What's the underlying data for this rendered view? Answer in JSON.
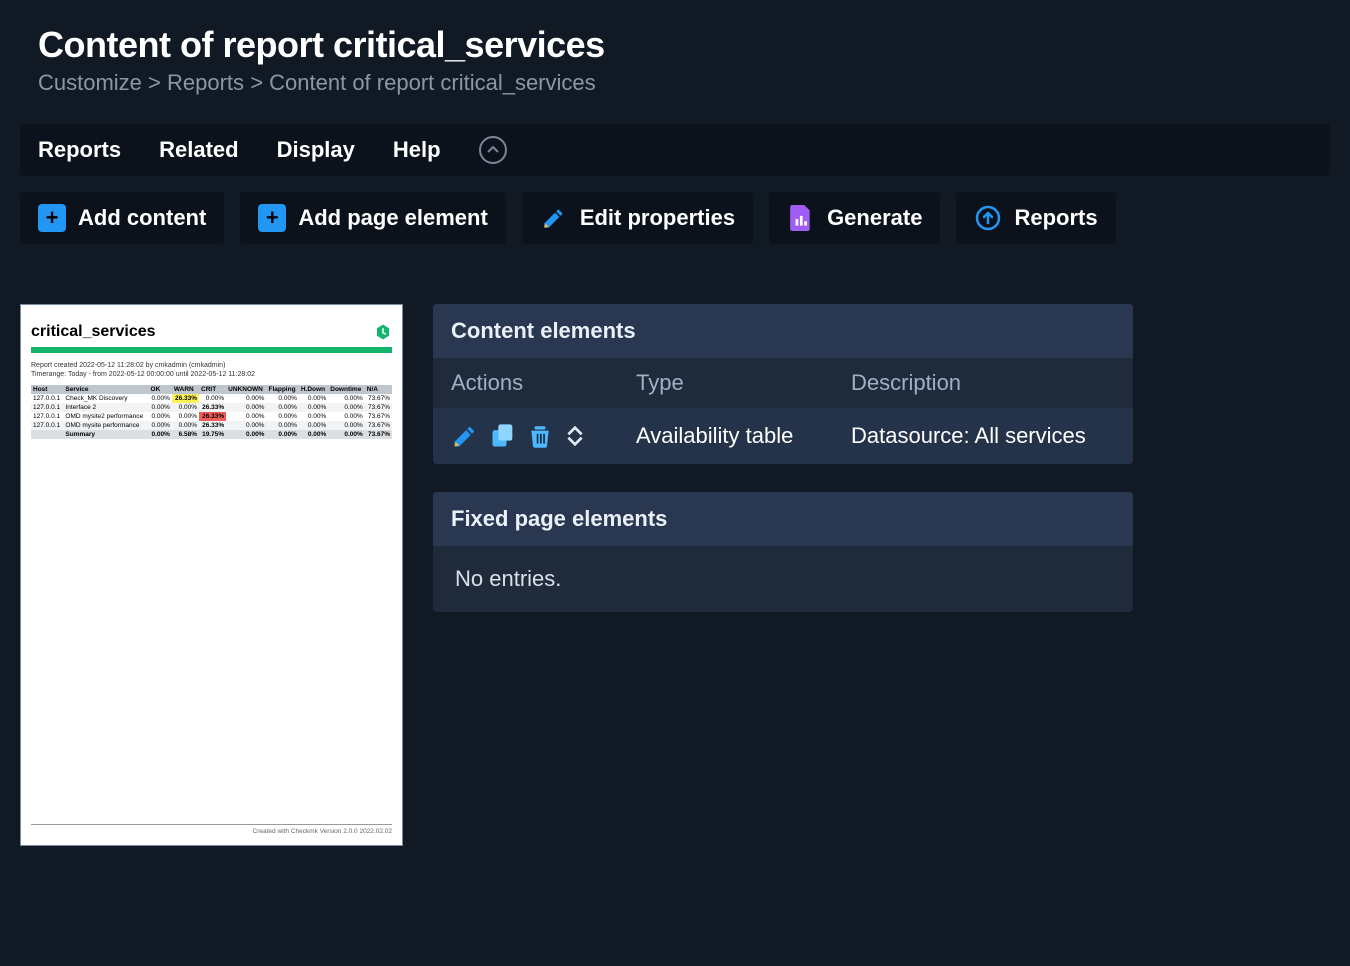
{
  "page": {
    "title": "Content of report critical_services",
    "breadcrumb": [
      "Customize",
      "Reports",
      "Content of report critical_services"
    ]
  },
  "menubar": {
    "items": [
      "Reports",
      "Related",
      "Display",
      "Help"
    ]
  },
  "toolbar": {
    "add_content": "Add content",
    "add_page_element": "Add page element",
    "edit_properties": "Edit properties",
    "generate": "Generate",
    "reports": "Reports"
  },
  "preview": {
    "title": "critical_services",
    "meta_line1": "Report created 2022-05-12 11:28:02 by cmkadmin (cmkadmin)",
    "meta_line2": "Timerange: Today - from 2022-05-12 00:00:00 until 2022-05-12 11:28:02",
    "columns": [
      "Host",
      "Service",
      "OK",
      "WARN",
      "CRIT",
      "UNKNOWN",
      "Flapping",
      "H.Down",
      "Downtime",
      "N/A"
    ],
    "rows": [
      {
        "host": "127.0.0.1",
        "service": "Check_MK Discovery",
        "ok": "0.00%",
        "warn": "26.33%",
        "crit": "0.00%",
        "unk": "0.00%",
        "flap": "0.00%",
        "hdown": "0.00%",
        "down": "0.00%",
        "na": "73.67%",
        "hl_warn": true
      },
      {
        "host": "127.0.0.1",
        "service": "Interface 2",
        "ok": "0.00%",
        "warn": "0.00%",
        "crit": "26.33%",
        "unk": "0.00%",
        "flap": "0.00%",
        "hdown": "0.00%",
        "down": "0.00%",
        "na": "73.67%",
        "hl_crit": true
      },
      {
        "host": "127.0.0.1",
        "service": "OMD mysite2 performance",
        "ok": "0.00%",
        "warn": "0.00%",
        "crit": "26.33%",
        "unk": "0.00%",
        "flap": "0.00%",
        "hdown": "0.00%",
        "down": "0.00%",
        "na": "73.67%",
        "hl_crit": true
      },
      {
        "host": "127.0.0.1",
        "service": "OMD mysite performance",
        "ok": "0.00%",
        "warn": "0.00%",
        "crit": "26.33%",
        "unk": "0.00%",
        "flap": "0.00%",
        "hdown": "0.00%",
        "down": "0.00%",
        "na": "73.67%",
        "hl_crit": true
      },
      {
        "host": "",
        "service": "Summary",
        "ok": "0.00%",
        "warn": "6.58%",
        "crit": "19.75%",
        "unk": "0.00%",
        "flap": "0.00%",
        "hdown": "0.00%",
        "down": "0.00%",
        "na": "73.67%",
        "summary": true,
        "hl_warn": true,
        "hl_crit": true
      }
    ],
    "footer": "Created with Checkmk Version 2.0.0 2022.02.02",
    "colors": {
      "warn_bg": "#fff45a",
      "crit_bg": "#f45c5c",
      "green_bar": "#14b66e",
      "header_bg": "#bfc6cd"
    }
  },
  "content_elements": {
    "title": "Content elements",
    "columns": {
      "actions": "Actions",
      "type": "Type",
      "description": "Description"
    },
    "row": {
      "type": "Availability table",
      "description": "Datasource: All services"
    }
  },
  "fixed_elements": {
    "title": "Fixed page elements",
    "empty_text": "No entries."
  },
  "icon_colors": {
    "plus_bg": "#2196f3",
    "pencil": "#ffb638",
    "pencil_body": "#2196f3",
    "generate": "#a05df3",
    "reports_ring": "#2196f3",
    "copy": "#4db8ff",
    "trash": "#4db8ff"
  }
}
